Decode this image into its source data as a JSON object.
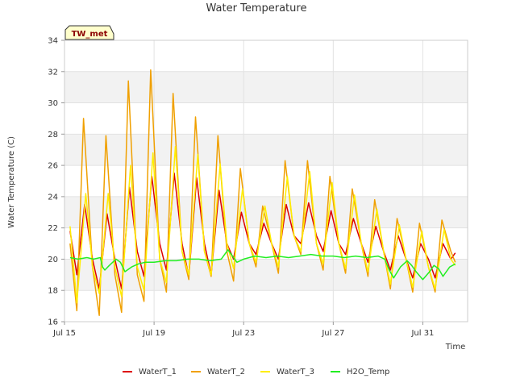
{
  "chart_data": {
    "type": "line",
    "title": "Water Temperature",
    "xlabel": "Time",
    "ylabel": "Water Temperature (C)",
    "tag": "TW_met",
    "ylim": [
      16,
      34
    ],
    "xlim": [
      0,
      18
    ],
    "yticks": [
      16,
      18,
      20,
      22,
      24,
      26,
      28,
      30,
      32,
      34
    ],
    "xticks": [
      {
        "x": 0,
        "label": "Jul 15"
      },
      {
        "x": 4,
        "label": "Jul 19"
      },
      {
        "x": 8,
        "label": "Jul 23"
      },
      {
        "x": 12,
        "label": "Jul 27"
      },
      {
        "x": 16,
        "label": "Jul 31"
      }
    ],
    "x_unit": "days since Jul 15",
    "grid": true,
    "legend_position": "bottom",
    "series": [
      {
        "name": "WaterT_1",
        "color": "#dd0000",
        "x": [
          0.25,
          0.55,
          0.9,
          1.25,
          1.55,
          1.9,
          2.25,
          2.55,
          2.9,
          3.25,
          3.55,
          3.9,
          4.25,
          4.55,
          4.9,
          5.25,
          5.55,
          5.9,
          6.25,
          6.55,
          6.9,
          7.25,
          7.55,
          7.9,
          8.25,
          8.55,
          8.9,
          9.25,
          9.55,
          9.9,
          10.25,
          10.55,
          10.9,
          11.25,
          11.55,
          11.9,
          12.25,
          12.55,
          12.9,
          13.25,
          13.55,
          13.9,
          14.25,
          14.55,
          14.9,
          15.25,
          15.55,
          15.9,
          16.25,
          16.55,
          16.9,
          17.25,
          17.45
        ],
        "y": [
          21.8,
          19.0,
          23.5,
          20.0,
          18.1,
          22.9,
          20.0,
          18.1,
          24.6,
          20.5,
          18.9,
          25.3,
          21.0,
          19.3,
          25.5,
          21.0,
          18.9,
          25.2,
          21.0,
          19.0,
          24.4,
          21.0,
          20.0,
          23.0,
          21.0,
          20.3,
          22.3,
          21.0,
          20.0,
          23.5,
          21.5,
          21.0,
          23.6,
          21.5,
          20.5,
          23.1,
          21.0,
          20.3,
          22.6,
          21.0,
          19.8,
          22.1,
          20.5,
          19.3,
          21.5,
          20.0,
          18.8,
          21.0,
          20.0,
          18.8,
          21.0,
          20.0,
          20.4
        ]
      },
      {
        "name": "WaterT_2",
        "color": "#f0a000",
        "x": [
          0.25,
          0.55,
          0.85,
          1.25,
          1.55,
          1.85,
          2.25,
          2.55,
          2.85,
          3.25,
          3.55,
          3.85,
          4.25,
          4.55,
          4.85,
          5.25,
          5.55,
          5.85,
          6.25,
          6.55,
          6.85,
          7.25,
          7.55,
          7.85,
          8.25,
          8.55,
          8.85,
          9.25,
          9.55,
          9.85,
          10.25,
          10.55,
          10.85,
          11.25,
          11.55,
          11.85,
          12.25,
          12.55,
          12.85,
          13.25,
          13.55,
          13.85,
          14.25,
          14.55,
          14.85,
          15.25,
          15.55,
          15.85,
          16.25,
          16.55,
          16.85,
          17.25,
          17.45
        ],
        "y": [
          21.0,
          16.7,
          29.0,
          19.5,
          16.4,
          27.9,
          19.0,
          16.6,
          31.4,
          19.0,
          17.3,
          32.1,
          20.0,
          17.9,
          30.6,
          20.5,
          18.7,
          29.1,
          20.5,
          18.9,
          27.9,
          20.5,
          18.6,
          25.8,
          21.0,
          19.5,
          23.4,
          21.0,
          19.1,
          26.3,
          21.5,
          20.3,
          26.3,
          21.0,
          19.3,
          25.3,
          21.0,
          19.1,
          24.5,
          21.0,
          18.9,
          23.8,
          20.5,
          18.1,
          22.6,
          20.0,
          17.9,
          22.3,
          19.5,
          17.9,
          22.5,
          20.5,
          19.8
        ]
      },
      {
        "name": "WaterT_3",
        "color": "#ffee00",
        "x": [
          0.25,
          0.55,
          0.95,
          1.25,
          1.55,
          1.95,
          2.25,
          2.55,
          2.95,
          3.25,
          3.55,
          3.95,
          4.25,
          4.55,
          4.95,
          5.25,
          5.55,
          5.95,
          6.25,
          6.55,
          6.95,
          7.25,
          7.55,
          7.95,
          8.25,
          8.55,
          8.95,
          9.25,
          9.55,
          9.95,
          10.25,
          10.55,
          10.95,
          11.25,
          11.55,
          11.95,
          12.25,
          12.55,
          12.95,
          13.25,
          13.55,
          13.95,
          14.25,
          14.55,
          14.95,
          15.25,
          15.55,
          15.95,
          16.25,
          16.55,
          16.95,
          17.25,
          17.45
        ],
        "y": [
          22.1,
          17.2,
          24.2,
          19.5,
          17.8,
          24.2,
          19.5,
          17.6,
          26.0,
          19.5,
          18.0,
          26.8,
          20.0,
          18.5,
          27.2,
          20.5,
          19.0,
          26.7,
          20.5,
          19.0,
          26.1,
          21.0,
          19.4,
          24.5,
          21.0,
          19.8,
          23.4,
          21.0,
          19.5,
          25.3,
          21.5,
          20.5,
          25.6,
          21.0,
          19.7,
          24.9,
          21.0,
          19.4,
          24.1,
          21.0,
          19.2,
          23.2,
          20.5,
          18.4,
          22.2,
          20.0,
          18.2,
          21.8,
          19.5,
          18.1,
          21.9,
          20.0,
          19.6
        ]
      },
      {
        "name": "H2O_Temp",
        "color": "#22ee22",
        "x": [
          0.25,
          0.6,
          1.0,
          1.3,
          1.6,
          1.7,
          1.8,
          2.0,
          2.3,
          2.5,
          2.7,
          2.8,
          3.0,
          3.3,
          3.6,
          4.0,
          4.5,
          5.0,
          5.5,
          6.0,
          6.5,
          7.0,
          7.3,
          7.5,
          7.7,
          8.0,
          8.5,
          9.0,
          9.5,
          10.0,
          10.5,
          11.0,
          11.5,
          12.0,
          12.5,
          13.0,
          13.5,
          14.0,
          14.3,
          14.5,
          14.7,
          15.0,
          15.3,
          15.5,
          15.7,
          16.0,
          16.3,
          16.5,
          16.7,
          16.9,
          17.2,
          17.45
        ],
        "y": [
          20.1,
          20.0,
          20.1,
          20.0,
          20.1,
          19.5,
          19.3,
          19.6,
          20.0,
          19.8,
          19.2,
          19.3,
          19.5,
          19.7,
          19.8,
          19.8,
          19.9,
          19.9,
          20.0,
          20.0,
          19.9,
          20.0,
          20.6,
          20.2,
          19.8,
          20.0,
          20.2,
          20.1,
          20.2,
          20.1,
          20.2,
          20.3,
          20.2,
          20.2,
          20.1,
          20.2,
          20.1,
          20.2,
          20.0,
          19.3,
          18.8,
          19.5,
          19.9,
          19.6,
          19.2,
          18.7,
          19.2,
          19.6,
          19.4,
          18.9,
          19.5,
          19.7
        ]
      }
    ]
  }
}
